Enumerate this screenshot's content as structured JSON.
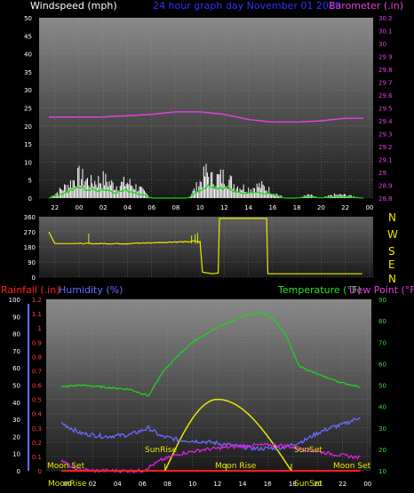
{
  "header": {
    "windspeed_label": "Windspeed (mph)",
    "title": "24 hour graph day   November 01 2019",
    "barometer_label": "Barometer (.in)"
  },
  "compass": [
    "N",
    "W",
    "S",
    "E",
    "N"
  ],
  "lower_labels": {
    "rainfall": "Rainfall (.in)",
    "humidity": "Humidity (%)",
    "temperature": "Temperature (°F)",
    "dewpoint": "Dew Point (°F)"
  },
  "annotations": {
    "moon_set_left": "Moon Set",
    "sunrise": "SunRise",
    "moon_rise": "Moon Rise",
    "sunset": "SunSet",
    "moon_set_right": "Moon Set",
    "bottom_moonrise": "MoonRise",
    "bottom_sunset": "SunSet"
  },
  "colors": {
    "wind": "#ffffff",
    "gust_avg": "#00dd00",
    "baro": "#e040e0",
    "direction": "#e8e800",
    "humidity": "#6a6aff",
    "temperature": "#20d020",
    "dewpoint": "#e020e0",
    "rain": "#ff2020",
    "solar": "#e8e800",
    "title": "#3030ff",
    "temp_label": "#30e030"
  },
  "chart_data": [
    {
      "type": "line",
      "title": "24 hour graph day   November 01 2019",
      "x_ticks": [
        "22",
        "00",
        "02",
        "04",
        "06",
        "08",
        "10",
        "12",
        "14",
        "16",
        "18",
        "20",
        "22",
        "00"
      ],
      "ylim_left": [
        0,
        50
      ],
      "yticks_left": [
        0,
        5,
        10,
        15,
        20,
        25,
        30,
        35,
        40,
        45,
        50
      ],
      "ylim_right": [
        28.8,
        30.2
      ],
      "yticks_right": [
        "28.8",
        "28.9",
        "29",
        "29.1",
        "29.2",
        "29.3",
        "29.4",
        "29.5",
        "29.6",
        "29.7",
        "29.8",
        "29.9",
        "30",
        "30.1",
        "30.2"
      ],
      "series": [
        {
          "name": "Windspeed (mph)",
          "hours": [
            -2.5,
            -1,
            0,
            1,
            2,
            3,
            4,
            5,
            6,
            7,
            8,
            9,
            10,
            10.5,
            11,
            12,
            13,
            14,
            15,
            16,
            17,
            18,
            19,
            20,
            21,
            22,
            23.5
          ],
          "values": [
            0,
            4,
            7,
            5,
            6,
            4,
            5,
            3,
            0,
            0,
            0,
            0,
            5,
            8,
            6,
            7,
            4,
            3,
            4,
            2,
            0,
            0,
            1,
            0,
            1,
            1,
            0
          ]
        },
        {
          "name": "Barometer (.in)",
          "hours": [
            -2.5,
            0,
            2,
            4,
            6,
            8,
            10,
            12,
            14,
            16,
            18,
            20,
            22,
            23.5
          ],
          "values": [
            29.43,
            29.43,
            29.43,
            29.44,
            29.45,
            29.47,
            29.47,
            29.45,
            29.41,
            29.39,
            29.39,
            29.4,
            29.42,
            29.42
          ]
        }
      ]
    },
    {
      "type": "line",
      "ylim": [
        0,
        360
      ],
      "yticks": [
        0,
        90,
        180,
        270,
        360
      ],
      "series": [
        {
          "name": "Wind direction",
          "hours": [
            -2.5,
            -2,
            0,
            2,
            4,
            6,
            8,
            9,
            9.5,
            10,
            10.2,
            11,
            11.5,
            11.6,
            15.5,
            15.6,
            23.5
          ],
          "values": [
            270,
            200,
            200,
            200,
            200,
            205,
            210,
            210,
            215,
            210,
            30,
            20,
            25,
            350,
            350,
            20,
            20
          ]
        }
      ]
    },
    {
      "type": "line",
      "x_ticks": [
        "00",
        "02",
        "04",
        "06",
        "08",
        "10",
        "12",
        "14",
        "16",
        "18",
        "20",
        "22",
        "00"
      ],
      "ylim_rain": [
        0,
        1.2
      ],
      "yticks_rain": [
        "0",
        "0.1",
        "0.2",
        "0.3",
        "0.4",
        "0.5",
        "0.6",
        "0.7",
        "0.8",
        "0.9",
        "1",
        "1.1",
        "1.2"
      ],
      "ylim_humidity": [
        0,
        100
      ],
      "yticks_humidity": [
        "0",
        "10",
        "20",
        "30",
        "40",
        "50",
        "60",
        "70",
        "80",
        "90",
        "100"
      ],
      "ylim_temp": [
        10,
        90
      ],
      "yticks_temp": [
        "10",
        "20",
        "30",
        "40",
        "50",
        "60",
        "70",
        "80",
        "90"
      ],
      "series": [
        {
          "name": "Humidity (%)",
          "hours": [
            -0.5,
            1,
            3,
            5,
            6.5,
            7.5,
            9,
            11,
            13,
            15,
            16,
            17.5,
            19,
            20,
            21,
            22,
            23,
            23.5
          ],
          "values": [
            28,
            22,
            20,
            21,
            25,
            20,
            18,
            17,
            15,
            13,
            13,
            14,
            18,
            22,
            25,
            27,
            30,
            32
          ]
        },
        {
          "name": "Temperature (°F)",
          "hours": [
            -0.5,
            1,
            3,
            5,
            6.5,
            7.5,
            8.5,
            10,
            12,
            14,
            15.5,
            16.5,
            17.5,
            18.5,
            20,
            22,
            23.5
          ],
          "values": [
            49,
            50,
            49,
            48,
            45,
            55,
            62,
            70,
            77,
            82,
            84,
            81,
            73,
            59,
            55,
            51,
            49
          ]
        },
        {
          "name": "Dew Point (°F)",
          "hours": [
            -0.5,
            0.5,
            2,
            4,
            6,
            7.5,
            9,
            11,
            13,
            15,
            17,
            19,
            21,
            23.5
          ],
          "values": [
            15,
            11,
            10,
            10,
            10,
            15,
            18,
            20,
            21,
            22,
            22,
            20,
            18,
            16
          ]
        },
        {
          "name": "Rainfall (.in)",
          "hours": [
            -0.5,
            23.5
          ],
          "values": [
            0,
            0
          ]
        }
      ],
      "solar_peak_hour": 12,
      "sunrise_hour": 7.8,
      "sunset_hour": 17.9,
      "moonrise_hour": 12.7,
      "moonset_hour": -0.3
    }
  ]
}
